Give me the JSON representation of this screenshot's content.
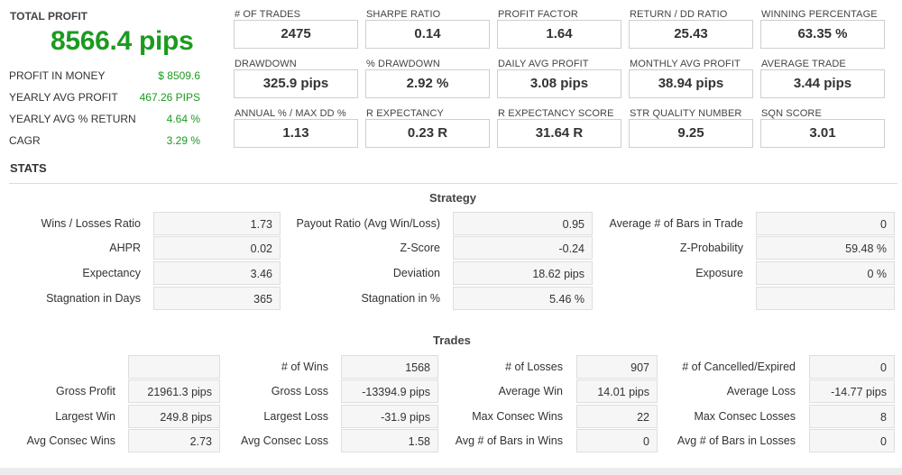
{
  "summary": {
    "total_profit_label": "TOTAL PROFIT",
    "total_profit_value": "8566.4 pips",
    "rows": [
      {
        "label": "PROFIT IN MONEY",
        "value": "$ 8509.6"
      },
      {
        "label": "YEARLY AVG PROFIT",
        "value": "467.26 PIPS"
      },
      {
        "label": "YEARLY AVG % RETURN",
        "value": "4.64 %"
      },
      {
        "label": "CAGR",
        "value": "3.29 %"
      }
    ],
    "accent_color": "#1b9b1f"
  },
  "metrics": [
    {
      "label": "# OF TRADES",
      "value": "2475"
    },
    {
      "label": "SHARPE RATIO",
      "value": "0.14"
    },
    {
      "label": "PROFIT FACTOR",
      "value": "1.64"
    },
    {
      "label": "RETURN / DD RATIO",
      "value": "25.43"
    },
    {
      "label": "WINNING PERCENTAGE",
      "value": "63.35 %"
    },
    {
      "label": "DRAWDOWN",
      "value": "325.9 pips"
    },
    {
      "label": "% DRAWDOWN",
      "value": "2.92 %"
    },
    {
      "label": "DAILY AVG PROFIT",
      "value": "3.08 pips"
    },
    {
      "label": "MONTHLY AVG PROFIT",
      "value": "38.94 pips"
    },
    {
      "label": "AVERAGE TRADE",
      "value": "3.44 pips"
    },
    {
      "label": "ANNUAL % / MAX DD %",
      "value": "1.13"
    },
    {
      "label": "R EXPECTANCY",
      "value": "0.23 R"
    },
    {
      "label": "R EXPECTANCY SCORE",
      "value": "31.64 R"
    },
    {
      "label": "STR QUALITY NUMBER",
      "value": "9.25"
    },
    {
      "label": "SQN SCORE",
      "value": "3.01"
    }
  ],
  "stats": {
    "title": "STATS",
    "strategy": {
      "title": "Strategy",
      "rows": [
        [
          {
            "label": "Wins / Losses Ratio",
            "value": "1.73"
          },
          {
            "label": "Payout Ratio (Avg Win/Loss)",
            "value": "0.95"
          },
          {
            "label": "Average # of Bars in Trade",
            "value": "0"
          }
        ],
        [
          {
            "label": "AHPR",
            "value": "0.02"
          },
          {
            "label": "Z-Score",
            "value": "-0.24"
          },
          {
            "label": "Z-Probability",
            "value": "59.48 %"
          }
        ],
        [
          {
            "label": "Expectancy",
            "value": "3.46"
          },
          {
            "label": "Deviation",
            "value": "18.62 pips"
          },
          {
            "label": "Exposure",
            "value": "0 %"
          }
        ],
        [
          {
            "label": "Stagnation in Days",
            "value": "365"
          },
          {
            "label": "Stagnation in %",
            "value": "5.46 %"
          },
          {
            "label": "",
            "value": ""
          }
        ]
      ]
    },
    "trades": {
      "title": "Trades",
      "rows": [
        [
          {
            "label": "",
            "value": ""
          },
          {
            "label": "# of Wins",
            "value": "1568"
          },
          {
            "label": "# of Losses",
            "value": "907"
          },
          {
            "label": "# of Cancelled/Expired",
            "value": "0"
          }
        ],
        [
          {
            "label": "Gross Profit",
            "value": "21961.3 pips"
          },
          {
            "label": "Gross Loss",
            "value": "-13394.9 pips"
          },
          {
            "label": "Average Win",
            "value": "14.01 pips"
          },
          {
            "label": "Average Loss",
            "value": "-14.77 pips"
          }
        ],
        [
          {
            "label": "Largest Win",
            "value": "249.8 pips"
          },
          {
            "label": "Largest Loss",
            "value": "-31.9 pips"
          },
          {
            "label": "Max Consec Wins",
            "value": "22"
          },
          {
            "label": "Max Consec Losses",
            "value": "8"
          }
        ],
        [
          {
            "label": "Avg Consec Wins",
            "value": "2.73"
          },
          {
            "label": "Avg Consec Loss",
            "value": "1.58"
          },
          {
            "label": "Avg # of Bars in Wins",
            "value": "0"
          },
          {
            "label": "Avg # of Bars in Losses",
            "value": "0"
          }
        ]
      ]
    }
  }
}
